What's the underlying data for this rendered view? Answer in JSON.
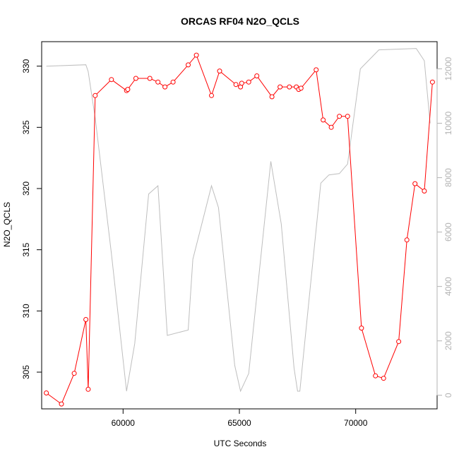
{
  "chart_data": {
    "type": "line",
    "title": "ORCAS RF04 N2O_QCLS",
    "xlabel": "UTC Seconds",
    "ylabel": "N2O_QCLS",
    "xlim": [
      56500,
      73500
    ],
    "ylim": [
      302,
      332
    ],
    "y2lim": [
      -500,
      13000
    ],
    "x_ticks": [
      60000,
      65000,
      70000
    ],
    "x_tick_labels": [
      "60000",
      "65000",
      "70000"
    ],
    "y_ticks": [
      305,
      310,
      315,
      320,
      325,
      330
    ],
    "y_tick_labels": [
      "305",
      "310",
      "315",
      "320",
      "325",
      "330"
    ],
    "y2_ticks": [
      0,
      2000,
      4000,
      6000,
      8000,
      10000,
      12000
    ],
    "y2_tick_labels": [
      "0",
      "2000",
      "4000",
      "6000",
      "8000",
      "10000",
      "12000"
    ],
    "series": [
      {
        "axis": "left",
        "color": "#ff0000",
        "markers": "open-circle",
        "x": [
          56700,
          57350,
          57900,
          58400,
          58500,
          58800,
          59500,
          60150,
          60200,
          60550,
          61150,
          61500,
          61800,
          62150,
          62800,
          63150,
          63800,
          64150,
          64850,
          65050,
          65100,
          65400,
          65750,
          66400,
          66750,
          67150,
          67450,
          67550,
          67650,
          68300,
          68600,
          68950,
          69300,
          69650,
          70250,
          70850,
          71200,
          71850,
          72200,
          72550,
          72950,
          73300
        ],
        "y": [
          303.3,
          302.4,
          304.9,
          309.3,
          303.6,
          327.6,
          328.9,
          328.0,
          328.1,
          329.0,
          329.0,
          328.7,
          328.3,
          328.7,
          330.1,
          330.9,
          327.6,
          329.6,
          328.5,
          328.3,
          328.6,
          328.7,
          329.2,
          327.5,
          328.3,
          328.3,
          328.3,
          328.1,
          328.2,
          329.7,
          325.6,
          325.0,
          325.9,
          325.9,
          308.6,
          304.7,
          304.5,
          307.5,
          315.8,
          320.4,
          319.8,
          328.7
        ]
      },
      {
        "axis": "right",
        "color": "#bebebe",
        "markers": "none",
        "x": [
          56700,
          58400,
          58500,
          58800,
          59500,
          60150,
          60500,
          61100,
          61500,
          61900,
          62800,
          63000,
          63800,
          64100,
          64800,
          65050,
          65400,
          66350,
          66800,
          67350,
          67500,
          67600,
          68050,
          68500,
          68850,
          69300,
          69650,
          70200,
          71000,
          72600,
          72950,
          73200
        ],
        "y": [
          12100,
          12150,
          11900,
          10200,
          5200,
          150,
          1900,
          7400,
          7700,
          2200,
          2400,
          5000,
          7700,
          6900,
          1100,
          150,
          800,
          8600,
          6300,
          1000,
          150,
          150,
          4000,
          7800,
          8100,
          8150,
          8500,
          12000,
          12700,
          12750,
          12300,
          10000
        ]
      }
    ]
  }
}
